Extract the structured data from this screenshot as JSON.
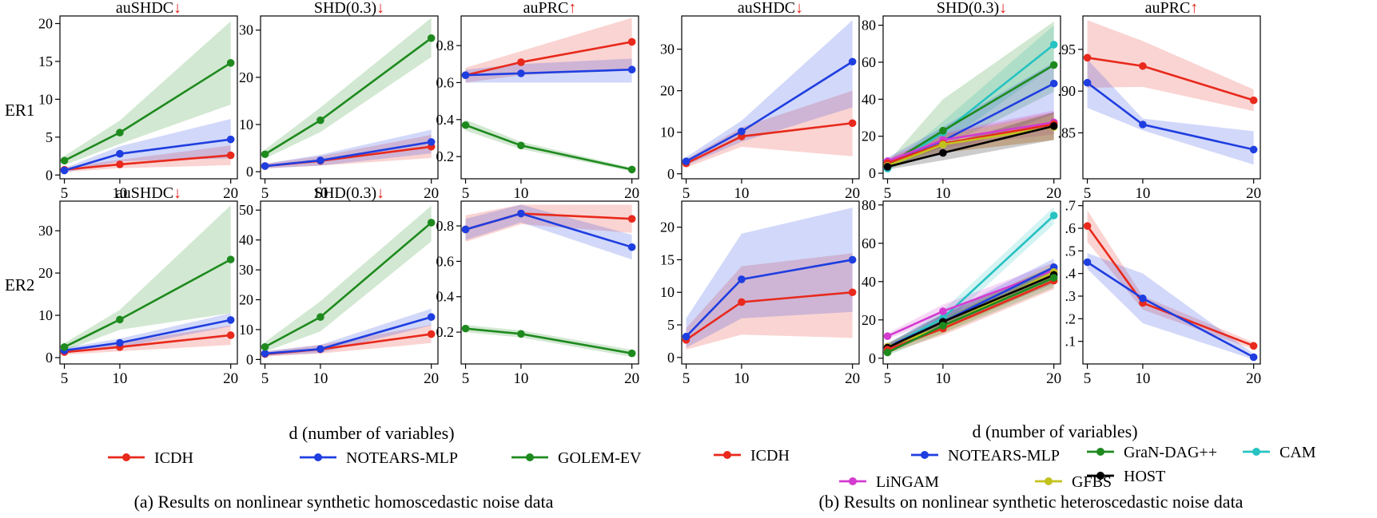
{
  "colors": {
    "ICDH": "#e8291c",
    "NOTEARS-MLP": "#1f3ee0",
    "GOLEM-EV": "#1e8a1e",
    "GraN-DAG++": "#1e8a1e",
    "CAM": "#27c2c2",
    "LiNGAM": "#d43bd0",
    "GFBS": "#c2c21e",
    "HOST": "#000000",
    "arrow": "#e0201a"
  },
  "row_labels": [
    "ER1",
    "ER2"
  ],
  "axis_xlabels": [
    "d (number of variables)",
    "d (number of variables)"
  ],
  "captions": [
    "(a) Results on nonlinear synthetic homoscedastic noise data",
    "(b) Results on nonlinear synthetic heteroscedastic noise data"
  ],
  "legend_a": [
    {
      "name": "ICDH"
    },
    {
      "name": "NOTEARS-MLP"
    },
    {
      "name": "GOLEM-EV"
    }
  ],
  "legend_b": [
    {
      "name": "ICDH"
    },
    {
      "name": "NOTEARS-MLP"
    },
    {
      "name": "GraN-DAG++"
    },
    {
      "name": "CAM"
    },
    {
      "name": "LiNGAM"
    },
    {
      "name": "GFBS"
    },
    {
      "name": "HOST"
    }
  ],
  "chart_data": [
    {
      "type": "line",
      "title": "auSHDC",
      "arrow": "↓",
      "row": "ER1",
      "group": "a",
      "x": [
        5,
        10,
        20
      ],
      "ylim": [
        -0.5,
        21
      ],
      "yticks": [
        0,
        5,
        10,
        15,
        20
      ],
      "yticklabels": [
        "0",
        "5",
        "10",
        "15",
        "20"
      ],
      "series": [
        {
          "name": "ICDH",
          "values": [
            0.7,
            1.4,
            2.6
          ],
          "lower": [
            0.4,
            0.9,
            1.3
          ],
          "upper": [
            1.0,
            2.0,
            3.9
          ]
        },
        {
          "name": "NOTEARS-MLP",
          "values": [
            0.6,
            2.8,
            4.7
          ],
          "lower": [
            0.3,
            1.8,
            2.2
          ],
          "upper": [
            0.9,
            3.8,
            7.4
          ]
        },
        {
          "name": "GOLEM-EV",
          "values": [
            1.9,
            5.6,
            14.8
          ],
          "lower": [
            1.3,
            4.1,
            9.3
          ],
          "upper": [
            2.5,
            7.2,
            20.3
          ]
        }
      ]
    },
    {
      "type": "line",
      "title": "SHD(0.3)",
      "arrow": "↓",
      "row": "ER1",
      "group": "a",
      "x": [
        5,
        10,
        20
      ],
      "ylim": [
        -1.5,
        33
      ],
      "yticks": [
        0,
        10,
        20,
        30
      ],
      "yticklabels": [
        "0",
        "10",
        "20",
        "30"
      ],
      "series": [
        {
          "name": "ICDH",
          "values": [
            1.2,
            2.3,
            5.3
          ],
          "lower": [
            0.7,
            1.3,
            2.9
          ],
          "upper": [
            1.7,
            3.3,
            7.8
          ]
        },
        {
          "name": "NOTEARS-MLP",
          "values": [
            1.2,
            2.4,
            6.3
          ],
          "lower": [
            0.7,
            1.3,
            3.9
          ],
          "upper": [
            1.7,
            3.6,
            8.9
          ]
        },
        {
          "name": "GOLEM-EV",
          "values": [
            3.7,
            10.9,
            28.3
          ],
          "lower": [
            2.8,
            8.4,
            24.3
          ],
          "upper": [
            4.7,
            13.6,
            32.6
          ]
        }
      ]
    },
    {
      "type": "line",
      "title": "auPRC",
      "arrow": "↑",
      "row": "ER1",
      "group": "a",
      "x": [
        5,
        10,
        20
      ],
      "ylim": [
        0.08,
        0.96
      ],
      "yticks": [
        0.2,
        0.4,
        0.6,
        0.8
      ],
      "yticklabels": [
        "0.2",
        "0.4",
        "0.6",
        "0.8"
      ],
      "series": [
        {
          "name": "ICDH",
          "values": [
            0.64,
            0.71,
            0.82
          ],
          "lower": [
            0.6,
            0.64,
            0.67
          ],
          "upper": [
            0.68,
            0.77,
            0.95
          ]
        },
        {
          "name": "NOTEARS-MLP",
          "values": [
            0.64,
            0.65,
            0.67
          ],
          "lower": [
            0.6,
            0.6,
            0.6
          ],
          "upper": [
            0.67,
            0.7,
            0.73
          ]
        },
        {
          "name": "GOLEM-EV",
          "values": [
            0.37,
            0.26,
            0.13
          ],
          "lower": [
            0.34,
            0.24,
            0.12
          ],
          "upper": [
            0.4,
            0.28,
            0.14
          ]
        }
      ]
    },
    {
      "type": "line",
      "title": "auSHDC",
      "arrow": "↓",
      "row": "ER2",
      "group": "a",
      "x": [
        5,
        10,
        20
      ],
      "ylim": [
        -1.5,
        37
      ],
      "yticks": [
        0,
        10,
        20,
        30
      ],
      "yticklabels": [
        "0",
        "10",
        "20",
        "30"
      ],
      "series": [
        {
          "name": "ICDH",
          "values": [
            1.3,
            2.5,
            5.3
          ],
          "lower": [
            0.7,
            1.5,
            3.0
          ],
          "upper": [
            1.9,
            3.6,
            7.6
          ]
        },
        {
          "name": "NOTEARS-MLP",
          "values": [
            1.7,
            3.5,
            8.9
          ],
          "lower": [
            1.1,
            2.4,
            7.4
          ],
          "upper": [
            2.3,
            4.5,
            10.5
          ]
        },
        {
          "name": "GOLEM-EV",
          "values": [
            2.5,
            9.0,
            23.2
          ],
          "lower": [
            1.6,
            6.6,
            10.5
          ],
          "upper": [
            3.4,
            11.3,
            36.0
          ]
        }
      ]
    },
    {
      "type": "line",
      "title": "SHD(0.3)",
      "arrow": "↓",
      "row": "ER2",
      "group": "a",
      "x": [
        5,
        10,
        20
      ],
      "ylim": [
        -1.5,
        53
      ],
      "yticks": [
        0,
        10,
        20,
        30,
        40,
        50
      ],
      "yticklabels": [
        "0",
        "10",
        "20",
        "30",
        "40",
        "50"
      ],
      "series": [
        {
          "name": "ICDH",
          "values": [
            1.8,
            3.4,
            8.5
          ],
          "lower": [
            1.0,
            2.0,
            5.5
          ],
          "upper": [
            2.6,
            4.9,
            11.6
          ]
        },
        {
          "name": "NOTEARS-MLP",
          "values": [
            2.0,
            3.5,
            14.2
          ],
          "lower": [
            1.2,
            2.2,
            11.4
          ],
          "upper": [
            2.8,
            4.9,
            17.0
          ]
        },
        {
          "name": "GOLEM-EV",
          "values": [
            4.2,
            14.2,
            45.8
          ],
          "lower": [
            2.6,
            9.4,
            39.5
          ],
          "upper": [
            5.8,
            19.5,
            51.5
          ]
        }
      ]
    },
    {
      "type": "line",
      "title": "",
      "arrow": "",
      "row": "ER2",
      "group": "a",
      "x": [
        5,
        10,
        20
      ],
      "ylim": [
        0.02,
        0.94
      ],
      "yticks": [
        0.2,
        0.4,
        0.6,
        0.8
      ],
      "yticklabels": [
        "0.2",
        "0.4",
        "0.6",
        "0.8"
      ],
      "series": [
        {
          "name": "ICDH",
          "values": [
            0.78,
            0.87,
            0.84
          ],
          "lower": [
            0.71,
            0.81,
            0.76
          ],
          "upper": [
            0.86,
            0.92,
            0.92
          ]
        },
        {
          "name": "NOTEARS-MLP",
          "values": [
            0.78,
            0.87,
            0.68
          ],
          "lower": [
            0.72,
            0.82,
            0.61
          ],
          "upper": [
            0.84,
            0.92,
            0.75
          ]
        },
        {
          "name": "GOLEM-EV",
          "values": [
            0.22,
            0.19,
            0.08
          ],
          "lower": [
            0.2,
            0.17,
            0.06
          ],
          "upper": [
            0.24,
            0.21,
            0.1
          ]
        }
      ]
    },
    {
      "type": "line",
      "title": "auSHDC",
      "arrow": "↓",
      "row": "ER1",
      "group": "b",
      "x": [
        5,
        10,
        20
      ],
      "ylim": [
        -1.2,
        38
      ],
      "yticks": [
        0,
        10,
        20,
        30
      ],
      "yticklabels": [
        "0",
        "10",
        "20",
        "30"
      ],
      "series": [
        {
          "name": "ICDH",
          "values": [
            2.5,
            9.0,
            12.2
          ],
          "lower": [
            1.5,
            6.5,
            4.2
          ],
          "upper": [
            3.5,
            11.2,
            20.0
          ]
        },
        {
          "name": "NOTEARS-MLP",
          "values": [
            3.0,
            10.2,
            27.0
          ],
          "lower": [
            2.0,
            7.7,
            16.0
          ],
          "upper": [
            4.0,
            12.8,
            37.0
          ]
        }
      ]
    },
    {
      "type": "line",
      "title": "SHD(0.3)",
      "arrow": "↓",
      "row": "ER1",
      "group": "b",
      "x": [
        5,
        10,
        20
      ],
      "ylim": [
        -3,
        85
      ],
      "yticks": [
        0,
        20,
        40,
        60,
        80
      ],
      "yticklabels": [
        "0",
        "20",
        "40",
        "60",
        "80"
      ],
      "series": [
        {
          "name": "CAM",
          "values": [
            2.5,
            22.0,
            69.5
          ],
          "lower": [
            1.5,
            16.0,
            58.0
          ],
          "upper": [
            3.5,
            28.0,
            80.0
          ]
        },
        {
          "name": "GraN-DAG++",
          "values": [
            4.5,
            23.0,
            58.5
          ],
          "lower": [
            3.0,
            14.0,
            44.0
          ],
          "upper": [
            6.0,
            40.0,
            82.0
          ]
        },
        {
          "name": "NOTEARS-MLP",
          "values": [
            6.5,
            17.5,
            48.5
          ],
          "lower": [
            4.5,
            10.0,
            32.0
          ],
          "upper": [
            8.5,
            25.0,
            60.0
          ]
        },
        {
          "name": "LiNGAM",
          "values": [
            6.5,
            18.0,
            27.5
          ],
          "lower": [
            5.0,
            14.0,
            21.0
          ],
          "upper": [
            8.0,
            22.0,
            34.0
          ]
        },
        {
          "name": "ICDH",
          "values": [
            5.5,
            16.0,
            26.5
          ],
          "lower": [
            3.5,
            11.0,
            18.0
          ],
          "upper": [
            7.5,
            21.0,
            33.0
          ]
        },
        {
          "name": "GFBS",
          "values": [
            4.0,
            15.5,
            25.0
          ],
          "lower": [
            2.5,
            11.0,
            18.0
          ],
          "upper": [
            5.5,
            20.0,
            32.0
          ]
        },
        {
          "name": "HOST",
          "values": [
            3.5,
            11.0,
            25.5
          ],
          "lower": [
            2.0,
            7.0,
            18.0
          ],
          "upper": [
            5.0,
            15.0,
            33.0
          ]
        }
      ]
    },
    {
      "type": "line",
      "title": "auPRC",
      "arrow": "↑",
      "row": "ER1",
      "group": "b",
      "x": [
        5,
        10,
        20
      ],
      "ylim": [
        0.795,
        0.99
      ],
      "yticks": [
        0.85,
        0.9,
        0.95
      ],
      "yticklabels": [
        ".85",
        ".90",
        ".95"
      ],
      "series": [
        {
          "name": "ICDH",
          "values": [
            0.94,
            0.93,
            0.889
          ],
          "lower": [
            0.904,
            0.905,
            0.876
          ],
          "upper": [
            0.985,
            0.96,
            0.902
          ]
        },
        {
          "name": "NOTEARS-MLP",
          "values": [
            0.91,
            0.86,
            0.83
          ],
          "lower": [
            0.88,
            0.853,
            0.812
          ],
          "upper": [
            0.938,
            0.867,
            0.852
          ]
        }
      ]
    },
    {
      "type": "line",
      "title": "",
      "arrow": "",
      "row": "ER2",
      "group": "b",
      "x": [
        5,
        10,
        20
      ],
      "ylim": [
        -1,
        24
      ],
      "yticks": [
        0,
        5,
        10,
        15,
        20
      ],
      "yticklabels": [
        "0",
        "5",
        "10",
        "15",
        "20"
      ],
      "series": [
        {
          "name": "ICDH",
          "values": [
            2.7,
            8.5,
            10.0
          ],
          "lower": [
            1.2,
            3.5,
            3.0
          ],
          "upper": [
            4.5,
            14.0,
            16.0
          ]
        },
        {
          "name": "NOTEARS-MLP",
          "values": [
            3.2,
            12.0,
            15.0
          ],
          "lower": [
            1.5,
            6.0,
            7.0
          ],
          "upper": [
            6.0,
            19.0,
            23.0
          ]
        }
      ]
    },
    {
      "type": "line",
      "title": "",
      "arrow": "",
      "row": "ER2",
      "group": "b",
      "x": [
        5,
        10,
        20
      ],
      "ylim": [
        -3,
        82
      ],
      "yticks": [
        0,
        20,
        40,
        60,
        80
      ],
      "yticklabels": [
        "0",
        "20",
        "40",
        "60",
        "80"
      ],
      "series": [
        {
          "name": "CAM",
          "values": [
            5.5,
            21.0,
            74.5
          ],
          "lower": [
            4.0,
            17.0,
            70.0
          ],
          "upper": [
            7.0,
            25.0,
            79.0
          ]
        },
        {
          "name": "LiNGAM",
          "values": [
            11.5,
            24.5,
            46.0
          ],
          "lower": [
            10.0,
            21.0,
            42.0
          ],
          "upper": [
            13.0,
            28.0,
            50.0
          ]
        },
        {
          "name": "NOTEARS-MLP",
          "values": [
            6.0,
            19.0,
            47.5
          ],
          "lower": [
            4.0,
            15.0,
            43.0
          ],
          "upper": [
            8.0,
            23.0,
            52.0
          ]
        },
        {
          "name": "GFBS",
          "values": [
            6.0,
            16.5,
            45.0
          ],
          "lower": [
            4.0,
            13.0,
            40.0
          ],
          "upper": [
            8.0,
            20.0,
            50.0
          ]
        },
        {
          "name": "HOST",
          "values": [
            5.5,
            19.0,
            43.5
          ],
          "lower": [
            3.5,
            15.0,
            39.0
          ],
          "upper": [
            7.5,
            23.0,
            48.0
          ]
        },
        {
          "name": "ICDH",
          "values": [
            4.5,
            15.5,
            40.5
          ],
          "lower": [
            2.5,
            12.0,
            36.0
          ],
          "upper": [
            6.5,
            19.0,
            45.0
          ]
        },
        {
          "name": "GraN-DAG++",
          "values": [
            3.0,
            17.0,
            42.0
          ],
          "lower": [
            1.5,
            13.0,
            37.0
          ],
          "upper": [
            4.5,
            21.0,
            47.0
          ]
        }
      ]
    },
    {
      "type": "line",
      "title": "",
      "arrow": "",
      "row": "ER2",
      "group": "b",
      "x": [
        5,
        10,
        20
      ],
      "ylim": [
        0.0,
        0.72
      ],
      "yticks": [
        0.1,
        0.2,
        0.3,
        0.4,
        0.5,
        0.6,
        0.7
      ],
      "yticklabels": [
        ".1",
        ".2",
        ".3",
        ".4",
        ".5",
        ".6",
        ".7"
      ],
      "series": [
        {
          "name": "ICDH",
          "values": [
            0.61,
            0.27,
            0.08
          ],
          "lower": [
            0.54,
            0.24,
            0.065
          ],
          "upper": [
            0.68,
            0.3,
            0.095
          ]
        },
        {
          "name": "NOTEARS-MLP",
          "values": [
            0.45,
            0.29,
            0.03
          ],
          "lower": [
            0.42,
            0.18,
            0.02
          ],
          "upper": [
            0.49,
            0.4,
            0.045
          ]
        }
      ]
    }
  ]
}
